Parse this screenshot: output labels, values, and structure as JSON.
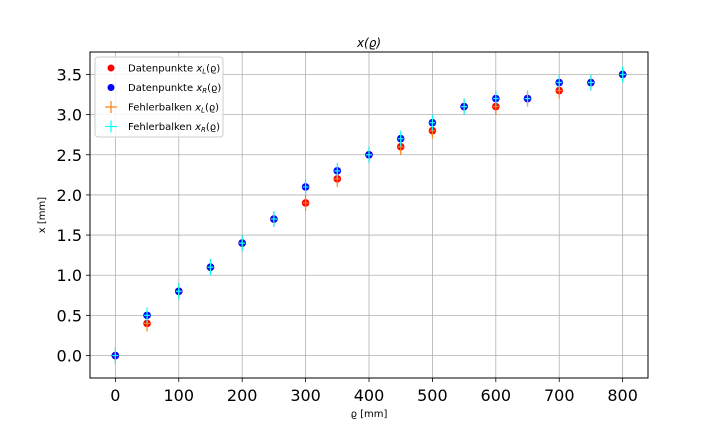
{
  "chart_data": {
    "type": "scatter",
    "title": "x(ϱ)",
    "xlabel": "ϱ [mm]",
    "ylabel": "x [mm]",
    "xlim": [
      -40,
      840
    ],
    "ylim": [
      -0.28,
      3.78
    ],
    "xticks": [
      0,
      100,
      200,
      300,
      400,
      500,
      600,
      700,
      800
    ],
    "yticks": [
      0.0,
      0.5,
      1.0,
      1.5,
      2.0,
      2.5,
      3.0,
      3.5
    ],
    "xtick_labels": [
      "0",
      "100",
      "200",
      "300",
      "400",
      "500",
      "600",
      "700",
      "800"
    ],
    "ytick_labels": [
      "0.0",
      "0.5",
      "1.0",
      "1.5",
      "2.0",
      "2.5",
      "3.0",
      "3.5"
    ],
    "grid": true,
    "legend_position": "top-left",
    "x": [
      0,
      50,
      100,
      150,
      200,
      250,
      300,
      350,
      400,
      450,
      500,
      550,
      600,
      650,
      700,
      750,
      800
    ],
    "series": [
      {
        "name": "Datenpunkte x_L(ϱ)",
        "label_main": "Datenpunkte ",
        "label_var": "x",
        "label_sub": "L",
        "label_arg": "(ϱ)",
        "kind": "points",
        "color": "#ff0000",
        "values": [
          0.0,
          0.4,
          0.8,
          1.1,
          1.4,
          1.7,
          1.9,
          2.2,
          2.5,
          2.6,
          2.8,
          3.1,
          3.1,
          3.2,
          3.3,
          3.4,
          3.5
        ]
      },
      {
        "name": "Datenpunkte x_R(ϱ)",
        "label_main": "Datenpunkte ",
        "label_var": "x",
        "label_sub": "R",
        "label_arg": "(ϱ)",
        "kind": "points",
        "color": "#0000ff",
        "values": [
          0.0,
          0.5,
          0.8,
          1.1,
          1.4,
          1.7,
          2.1,
          2.3,
          2.5,
          2.7,
          2.9,
          3.1,
          3.2,
          3.2,
          3.4,
          3.4,
          3.5
        ]
      },
      {
        "name": "Fehlerbalken x_L(ϱ)",
        "label_main": "Fehlerbalken ",
        "label_var": "x",
        "label_sub": "L",
        "label_arg": "(ϱ)",
        "kind": "errorbars",
        "color": "#ff7f0e",
        "error": 0.1
      },
      {
        "name": "Fehlerbalken x_R(ϱ)",
        "label_main": "Fehlerbalken ",
        "label_var": "x",
        "label_sub": "R",
        "label_arg": "(ϱ)",
        "kind": "errorbars",
        "color": "#00ffff",
        "error": 0.1
      }
    ]
  }
}
